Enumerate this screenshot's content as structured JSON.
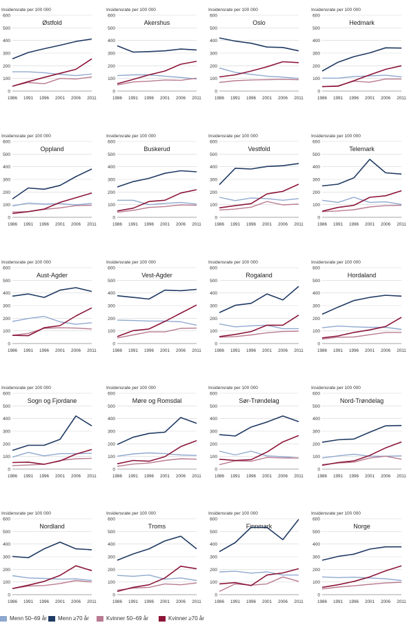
{
  "y_axis_caption": "Insidensrate per 100 000",
  "chart_data": {
    "type": "line",
    "x": [
      1986,
      1991,
      1996,
      2001,
      2006,
      2011
    ],
    "ylim": [
      0,
      600
    ],
    "yticks": [
      0,
      100,
      200,
      300,
      400,
      500,
      600
    ],
    "ylabel": "Insidensrate per 100 000",
    "legend_position": "bottom",
    "series_meta": [
      {
        "name": "Menn 50–69 år",
        "color": "#8fa8cf"
      },
      {
        "name": "Menn ≥70 år",
        "color": "#1f3a63"
      },
      {
        "name": "Kvinner 50–69 år",
        "color": "#b87a90"
      },
      {
        "name": "Kvinner ≥70 år",
        "color": "#8c1538"
      }
    ],
    "panels": [
      {
        "title": "Østfold",
        "series": [
          [
            152,
            152,
            145,
            132,
            122,
            135
          ],
          [
            255,
            305,
            335,
            362,
            392,
            412
          ],
          [
            38,
            68,
            58,
            100,
            95,
            112
          ],
          [
            38,
            75,
            108,
            140,
            172,
            255
          ]
        ]
      },
      {
        "title": "Akershus",
        "series": [
          [
            122,
            128,
            128,
            118,
            108,
            95
          ],
          [
            358,
            308,
            312,
            318,
            332,
            325
          ],
          [
            48,
            72,
            78,
            88,
            85,
            102
          ],
          [
            58,
            92,
            128,
            158,
            212,
            235
          ]
        ]
      },
      {
        "title": "Oslo",
        "series": [
          [
            182,
            148,
            132,
            118,
            110,
            100
          ],
          [
            420,
            395,
            378,
            348,
            345,
            318
          ],
          [
            68,
            82,
            88,
            90,
            92,
            90
          ],
          [
            112,
            128,
            158,
            192,
            232,
            225
          ]
        ]
      },
      {
        "title": "Hedmark",
        "series": [
          [
            102,
            102,
            115,
            120,
            125,
            112
          ],
          [
            158,
            228,
            272,
            302,
            342,
            340
          ],
          [
            35,
            42,
            78,
            70,
            95,
            95
          ],
          [
            35,
            38,
            82,
            128,
            172,
            200
          ]
        ]
      },
      {
        "title": "Oppland",
        "series": [
          [
            90,
            112,
            105,
            108,
            98,
            110
          ],
          [
            145,
            232,
            222,
            252,
            322,
            382
          ],
          [
            42,
            45,
            62,
            75,
            92,
            95
          ],
          [
            30,
            45,
            65,
            118,
            155,
            192
          ]
        ]
      },
      {
        "title": "Buskerud",
        "series": [
          [
            135,
            135,
            100,
            110,
            118,
            105
          ],
          [
            240,
            282,
            308,
            348,
            368,
            360
          ],
          [
            40,
            55,
            78,
            85,
            98,
            95
          ],
          [
            50,
            72,
            125,
            135,
            192,
            218
          ]
        ]
      },
      {
        "title": "Vestfold",
        "series": [
          [
            158,
            132,
            152,
            148,
            135,
            148
          ],
          [
            258,
            388,
            382,
            402,
            408,
            425
          ],
          [
            58,
            65,
            80,
            125,
            98,
            105
          ],
          [
            75,
            92,
            108,
            185,
            205,
            262
          ]
        ]
      },
      {
        "title": "Telemark",
        "series": [
          [
            135,
            118,
            158,
            118,
            122,
            102
          ],
          [
            248,
            262,
            312,
            458,
            352,
            342
          ],
          [
            45,
            50,
            60,
            82,
            92,
            95
          ],
          [
            48,
            78,
            95,
            158,
            170,
            210
          ]
        ]
      },
      {
        "title": "Aust-Agder",
        "series": [
          [
            175,
            198,
            215,
            172,
            152,
            165
          ],
          [
            375,
            392,
            365,
            422,
            442,
            412
          ],
          [
            65,
            80,
            120,
            125,
            122,
            115
          ],
          [
            65,
            62,
            125,
            142,
            218,
            282
          ]
        ]
      },
      {
        "title": "Vest-Agder",
        "series": [
          [
            185,
            182,
            178,
            178,
            172,
            145
          ],
          [
            378,
            365,
            352,
            422,
            418,
            428
          ],
          [
            45,
            68,
            92,
            92,
            120,
            122
          ],
          [
            55,
            102,
            115,
            175,
            240,
            305
          ]
        ]
      },
      {
        "title": "Rogaland",
        "series": [
          [
            155,
            132,
            140,
            145,
            118,
            118
          ],
          [
            245,
            302,
            318,
            392,
            345,
            452
          ],
          [
            50,
            55,
            68,
            85,
            95,
            98
          ],
          [
            55,
            72,
            95,
            145,
            145,
            225
          ]
        ]
      },
      {
        "title": "Hordaland",
        "series": [
          [
            125,
            138,
            132,
            128,
            128,
            112
          ],
          [
            232,
            288,
            340,
            365,
            382,
            375
          ],
          [
            35,
            50,
            52,
            70,
            88,
            88
          ],
          [
            45,
            60,
            88,
            108,
            135,
            208
          ]
        ]
      },
      {
        "title": "Sogn og Fjordane",
        "series": [
          [
            95,
            132,
            105,
            122,
            122,
            125
          ],
          [
            148,
            188,
            188,
            235,
            420,
            342
          ],
          [
            28,
            32,
            38,
            68,
            82,
            85
          ],
          [
            52,
            55,
            38,
            65,
            118,
            155
          ]
        ]
      },
      {
        "title": "Møre og Romsdal",
        "series": [
          [
            102,
            120,
            128,
            122,
            112,
            108
          ],
          [
            195,
            252,
            282,
            292,
            408,
            362
          ],
          [
            22,
            40,
            48,
            68,
            82,
            78
          ],
          [
            42,
            68,
            62,
            98,
            178,
            225
          ]
        ]
      },
      {
        "title": "Sør-Trøndelag",
        "series": [
          [
            142,
            112,
            142,
            105,
            98,
            88
          ],
          [
            272,
            262,
            332,
            372,
            420,
            375
          ],
          [
            35,
            65,
            62,
            92,
            88,
            88
          ],
          [
            78,
            68,
            75,
            135,
            215,
            265
          ]
        ]
      },
      {
        "title": "Nord-Trøndelag",
        "series": [
          [
            88,
            105,
            118,
            102,
            102,
            105
          ],
          [
            212,
            232,
            238,
            292,
            342,
            345
          ],
          [
            35,
            48,
            55,
            88,
            102,
            78
          ],
          [
            30,
            52,
            65,
            108,
            168,
            215
          ]
        ]
      },
      {
        "title": "Nordland",
        "series": [
          [
            150,
            132,
            128,
            122,
            125,
            112
          ],
          [
            302,
            292,
            362,
            415,
            362,
            355
          ],
          [
            48,
            68,
            72,
            88,
            112,
            100
          ],
          [
            48,
            75,
            105,
            152,
            228,
            190
          ]
        ]
      },
      {
        "title": "Troms",
        "series": [
          [
            152,
            145,
            155,
            122,
            132,
            112
          ],
          [
            272,
            322,
            362,
            425,
            462,
            362
          ],
          [
            35,
            52,
            58,
            85,
            78,
            92
          ],
          [
            25,
            58,
            78,
            132,
            225,
            205
          ]
        ]
      },
      {
        "title": "Finnmark",
        "series": [
          [
            180,
            185,
            170,
            180,
            155,
            155
          ],
          [
            340,
            412,
            532,
            532,
            435,
            595
          ],
          [
            25,
            85,
            75,
            85,
            140,
            105
          ],
          [
            85,
            95,
            72,
            155,
            172,
            205
          ]
        ]
      },
      {
        "title": "Norge",
        "series": [
          [
            140,
            135,
            138,
            132,
            125,
            112
          ],
          [
            272,
            302,
            320,
            360,
            378,
            378
          ],
          [
            45,
            60,
            70,
            82,
            92,
            98
          ],
          [
            58,
            78,
            105,
            140,
            188,
            228
          ]
        ]
      }
    ]
  }
}
